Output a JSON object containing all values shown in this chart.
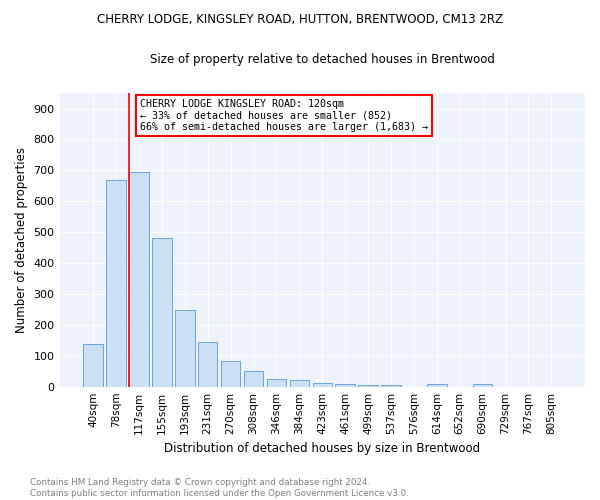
{
  "title": "CHERRY LODGE, KINGSLEY ROAD, HUTTON, BRENTWOOD, CM13 2RZ",
  "subtitle": "Size of property relative to detached houses in Brentwood",
  "xlabel": "Distribution of detached houses by size in Brentwood",
  "ylabel": "Number of detached properties",
  "footer_line1": "Contains HM Land Registry data © Crown copyright and database right 2024.",
  "footer_line2": "Contains public sector information licensed under the Open Government Licence v3.0.",
  "bar_labels": [
    "40sqm",
    "78sqm",
    "117sqm",
    "155sqm",
    "193sqm",
    "231sqm",
    "270sqm",
    "308sqm",
    "346sqm",
    "384sqm",
    "423sqm",
    "461sqm",
    "499sqm",
    "537sqm",
    "576sqm",
    "614sqm",
    "652sqm",
    "690sqm",
    "729sqm",
    "767sqm",
    "805sqm"
  ],
  "bar_values": [
    138,
    670,
    695,
    480,
    248,
    145,
    82,
    50,
    26,
    21,
    12,
    10,
    4,
    5,
    0,
    8,
    0,
    8,
    0,
    0,
    0
  ],
  "bar_color": "#cce0f5",
  "bar_edge_color": "#5b9bd5",
  "property_line_bin": 2,
  "property_line_color": "red",
  "ylim": [
    0,
    950
  ],
  "yticks": [
    0,
    100,
    200,
    300,
    400,
    500,
    600,
    700,
    800,
    900
  ],
  "annotation_text": "CHERRY LODGE KINGSLEY ROAD: 120sqm\n← 33% of detached houses are smaller (852)\n66% of semi-detached houses are larger (1,683) →",
  "annotation_box_color": "white",
  "annotation_box_edge_color": "red",
  "bg_color": "#eef2fa"
}
